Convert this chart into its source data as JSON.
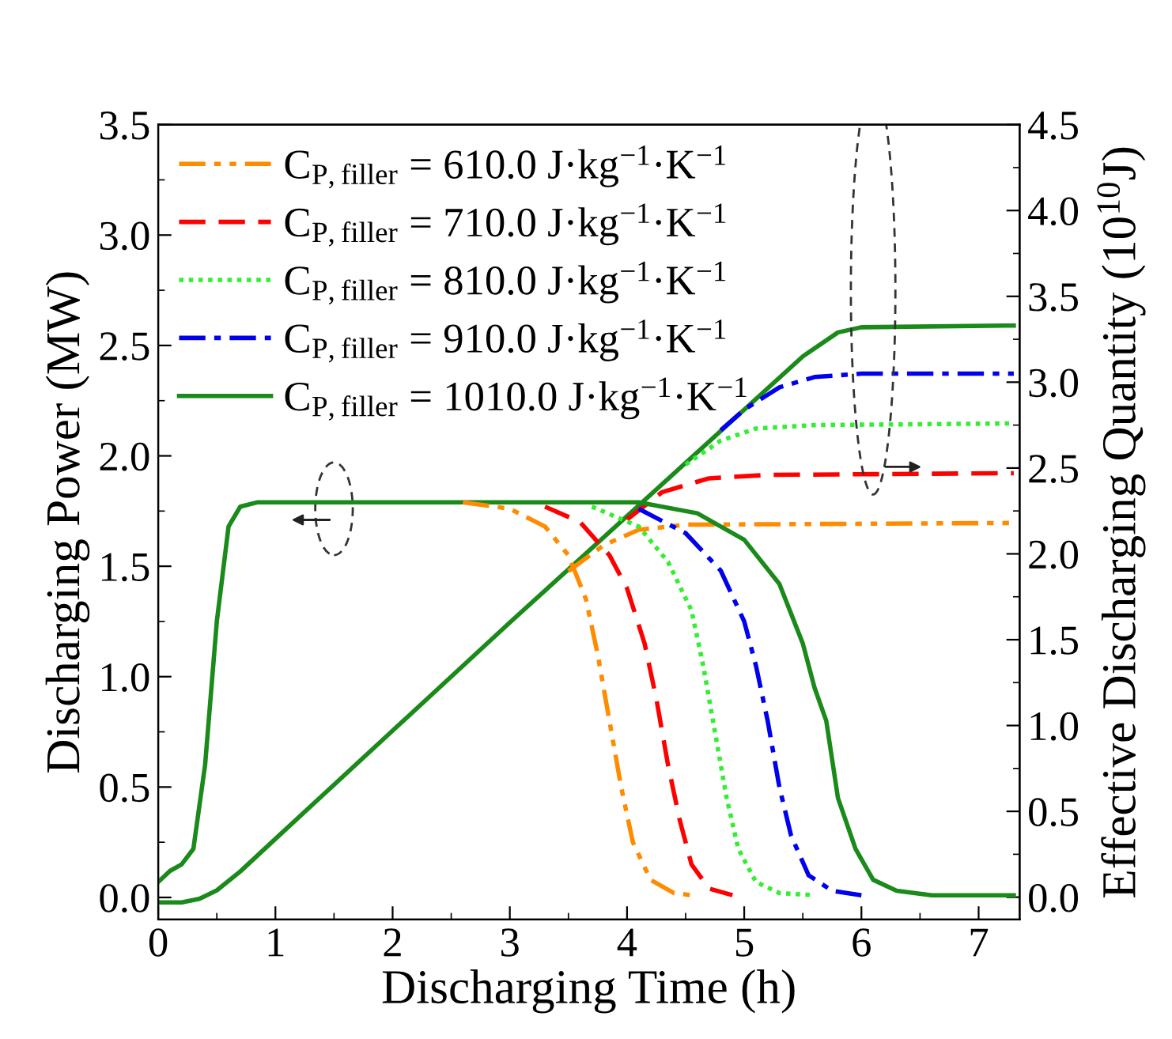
{
  "chart_data": {
    "type": "line",
    "xlabel": "Discharging Time (h)",
    "ylabel": "Discharging Power (MW)",
    "y2label": "Effective Discharging Quantity (10$^{10}$J)",
    "xlim": [
      0,
      7.35
    ],
    "xticks": [
      0,
      1,
      2,
      3,
      4,
      5,
      6,
      7
    ],
    "ylim": [
      -0.1,
      3.5
    ],
    "yticks": [
      {
        "value": 0,
        "label": "0.0"
      },
      0.5,
      {
        "value": 1,
        "label": "1.0"
      },
      1.5,
      {
        "value": 2,
        "label": "2.0"
      },
      2.5,
      {
        "value": 3,
        "label": "3.0"
      },
      3.5
    ],
    "y2lim": [
      -0.13,
      4.5
    ],
    "y2ticks": [
      {
        "value": 0,
        "label": "0.0"
      },
      0.5,
      {
        "value": 1,
        "label": "1.0"
      },
      1.5,
      {
        "value": 2,
        "label": "2.0"
      },
      2.5,
      {
        "value": 3,
        "label": "3.0"
      },
      3.5,
      {
        "value": 4,
        "label": "4.0"
      },
      4.5
    ],
    "grid": false,
    "legend": "top left",
    "series": [
      {
        "name": "C$_{P,filler}$ = 610.0 J·kg$^{−1}$·K$^{−1}$",
        "color": "#ff8c00",
        "line_style": "dashdotdot",
        "axis": "y",
        "x": [
          2.6,
          3.0,
          3.3,
          3.5,
          3.65,
          3.75,
          3.85,
          3.95,
          4.05,
          4.2,
          4.4,
          4.55
        ],
        "values": [
          1.79,
          1.76,
          1.68,
          1.55,
          1.35,
          1.1,
          0.8,
          0.5,
          0.25,
          0.08,
          0.02,
          0.01
        ]
      },
      {
        "name": "C$_{P,filler}$ = 710.0 J·kg$^{−1}$·K$^{−1}$",
        "color": "#ff0000",
        "line_style": "dashed",
        "axis": "y",
        "x": [
          3.3,
          3.6,
          3.85,
          4.0,
          4.15,
          4.25,
          4.35,
          4.45,
          4.55,
          4.7,
          4.9
        ],
        "values": [
          1.77,
          1.7,
          1.55,
          1.4,
          1.15,
          0.9,
          0.6,
          0.35,
          0.15,
          0.04,
          0.01
        ]
      },
      {
        "name": "C$_{P,filler}$ = 810.0 J·kg$^{−1}$·K$^{−1}$",
        "color": "#33ee33",
        "line_style": "dotted",
        "axis": "y",
        "x": [
          3.7,
          4.1,
          4.35,
          4.55,
          4.65,
          4.75,
          4.85,
          4.95,
          5.1,
          5.3,
          5.6
        ],
        "values": [
          1.77,
          1.68,
          1.52,
          1.3,
          1.05,
          0.75,
          0.45,
          0.22,
          0.07,
          0.02,
          0.01
        ]
      },
      {
        "name": "C$_{P,filler}$ = 910.0 J·kg$^{−1}$·K$^{−1}$",
        "color": "#0000ee",
        "line_style": "dashdot",
        "axis": "y",
        "x": [
          4.1,
          4.5,
          4.8,
          5.0,
          5.1,
          5.2,
          5.3,
          5.4,
          5.55,
          5.75,
          6.0
        ],
        "values": [
          1.76,
          1.65,
          1.48,
          1.25,
          1.05,
          0.8,
          0.5,
          0.28,
          0.1,
          0.03,
          0.01
        ]
      },
      {
        "name": "C$_{P,filler}$ = 1010.0 J·kg$^{−1}$·K$^{−1}$",
        "color": "#1a8a1a",
        "line_style": "solid",
        "axis": "y",
        "x": [
          0,
          0.1,
          0.2,
          0.3,
          0.4,
          0.5,
          0.6,
          0.7,
          0.85,
          4.1,
          4.6,
          5.0,
          5.3,
          5.5,
          5.6,
          5.7,
          5.8,
          5.95,
          6.1,
          6.3,
          6.6,
          7.3
        ],
        "values": [
          0.07,
          0.12,
          0.15,
          0.22,
          0.6,
          1.25,
          1.68,
          1.77,
          1.79,
          1.79,
          1.74,
          1.62,
          1.42,
          1.15,
          0.95,
          0.8,
          0.45,
          0.22,
          0.08,
          0.03,
          0.01,
          0.01
        ]
      },
      {
        "color": "#ff8c00",
        "line_style": "dashdotdot",
        "axis": "y2",
        "x": [
          3.5,
          3.8,
          4.1,
          4.5,
          7.3
        ],
        "values": [
          1.9,
          2.05,
          2.14,
          2.17,
          2.18
        ]
      },
      {
        "color": "#ff0000",
        "line_style": "dashed",
        "axis": "y2",
        "x": [
          4.0,
          4.3,
          4.7,
          5.2,
          7.3
        ],
        "values": [
          2.2,
          2.36,
          2.44,
          2.46,
          2.47
        ]
      },
      {
        "color": "#33ee33",
        "line_style": "dotted",
        "axis": "y2",
        "x": [
          4.5,
          4.8,
          5.1,
          5.6,
          7.3
        ],
        "values": [
          2.52,
          2.66,
          2.73,
          2.75,
          2.76
        ]
      },
      {
        "color": "#0000ee",
        "line_style": "dashdot",
        "axis": "y2",
        "x": [
          4.8,
          5.0,
          5.3,
          5.6,
          6.0,
          7.3
        ],
        "values": [
          2.72,
          2.84,
          2.97,
          3.03,
          3.05,
          3.05
        ]
      },
      {
        "color": "#1a8a1a",
        "line_style": "solid",
        "axis": "y2",
        "x": [
          0,
          0.2,
          0.35,
          0.5,
          0.7,
          1.0,
          2.0,
          3.0,
          5.5,
          5.8,
          6.0,
          7.3
        ],
        "values": [
          -0.03,
          -0.03,
          -0.01,
          0.04,
          0.15,
          0.34,
          0.97,
          1.6,
          3.15,
          3.29,
          3.32,
          3.33
        ]
      }
    ]
  }
}
